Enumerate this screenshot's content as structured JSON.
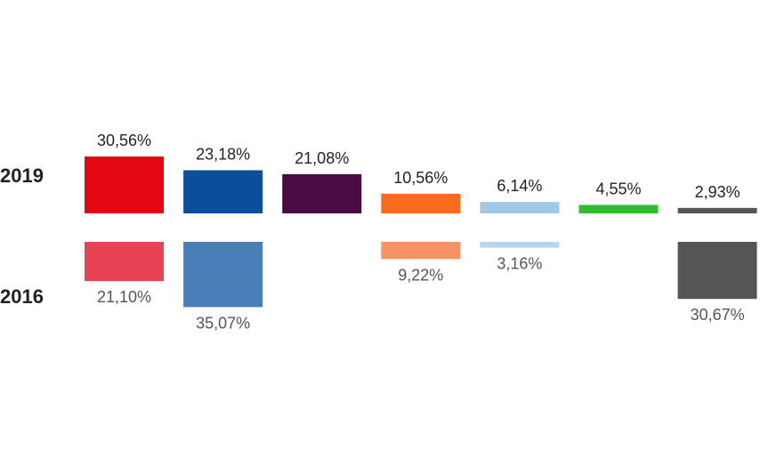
{
  "chart_data": {
    "type": "bar",
    "series": [
      {
        "name": "2019",
        "values": [
          30.56,
          23.18,
          21.08,
          10.56,
          6.14,
          4.55,
          2.93
        ],
        "labels": [
          "30,56%",
          "23,18%",
          "21,08%",
          "10,56%",
          "6,14%",
          "4,55%",
          "2,93%"
        ],
        "colors": [
          "#e30613",
          "#0b4f9c",
          "#4a0b45",
          "#fb6b1d",
          "#9fc7e6",
          "#2dbe2d",
          "#555555"
        ]
      },
      {
        "name": "2016",
        "values": [
          21.1,
          35.07,
          null,
          9.22,
          3.16,
          null,
          30.67
        ],
        "labels": [
          "21,10%",
          "35,07%",
          "",
          "9,22%",
          "3,16%",
          "",
          "30,67%"
        ],
        "colors": [
          "#e84355",
          "#4a7eb8",
          "#4a0b45",
          "#f79262",
          "#b6d6ee",
          "#2dbe2d",
          "#555555"
        ]
      }
    ],
    "ylim": [
      0,
      40
    ],
    "grid": false,
    "legend": "none"
  }
}
